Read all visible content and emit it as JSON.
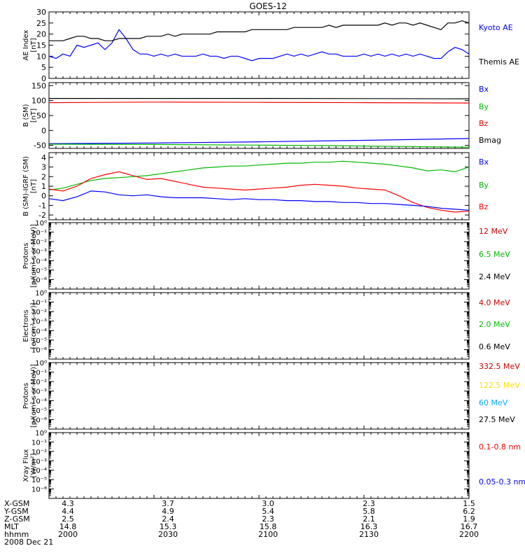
{
  "title": "GOES-12",
  "chart_data": [
    {
      "type": "line",
      "id": "ae",
      "ylabel": [
        "AE Index",
        "[nT]"
      ],
      "ylim": [
        0,
        30
      ],
      "yticks": [
        "0",
        "5",
        "10",
        "15",
        "20",
        "25",
        "30"
      ],
      "legend": [
        {
          "label": "Kyoto AE",
          "color": "#0000ff"
        },
        {
          "label": "Themis AE",
          "color": "#000000"
        }
      ],
      "series": [
        {
          "name": "Kyoto AE",
          "color": "#0000ff",
          "x": [
            0,
            1,
            2,
            3,
            4,
            5,
            6,
            7,
            8,
            9,
            10,
            11,
            12,
            13,
            14,
            15,
            16,
            17,
            18,
            19,
            20,
            21,
            22,
            23,
            24,
            25,
            26,
            27,
            28,
            29,
            30,
            31,
            32,
            33,
            34,
            35,
            36,
            37,
            38,
            39,
            40,
            41,
            42,
            43,
            44,
            45,
            46,
            47,
            48,
            49,
            50,
            51,
            52,
            53,
            54,
            55,
            56,
            57,
            58,
            59,
            60
          ],
          "y": [
            10,
            9,
            11,
            10,
            15,
            14,
            15,
            16,
            13,
            16,
            22,
            18,
            13,
            11,
            11,
            10,
            11,
            10,
            11,
            10,
            10,
            10,
            11,
            10,
            10,
            9,
            10,
            10,
            9,
            8,
            9,
            9,
            9,
            10,
            11,
            10,
            11,
            10,
            11,
            12,
            11,
            11,
            10,
            10,
            10,
            11,
            10,
            11,
            10,
            11,
            10,
            11,
            10,
            11,
            10,
            9,
            9,
            12,
            14,
            13,
            11
          ]
        },
        {
          "name": "Themis AE",
          "color": "#000000",
          "x": [
            0,
            1,
            2,
            3,
            4,
            5,
            6,
            7,
            8,
            9,
            10,
            11,
            12,
            13,
            14,
            15,
            16,
            17,
            18,
            19,
            20,
            21,
            22,
            23,
            24,
            25,
            26,
            27,
            28,
            29,
            30,
            31,
            32,
            33,
            34,
            35,
            36,
            37,
            38,
            39,
            40,
            41,
            42,
            43,
            44,
            45,
            46,
            47,
            48,
            49,
            50,
            51,
            52,
            53,
            54,
            55,
            56,
            57,
            58,
            59,
            60
          ],
          "y": [
            17,
            17,
            17,
            18,
            19,
            19,
            18,
            18,
            17,
            17,
            18,
            18,
            18,
            18,
            19,
            19,
            19,
            20,
            19,
            20,
            20,
            20,
            20,
            20,
            21,
            21,
            21,
            21,
            21,
            22,
            22,
            22,
            22,
            22,
            22,
            23,
            23,
            23,
            23,
            23,
            24,
            23,
            24,
            24,
            24,
            24,
            24,
            24,
            25,
            24,
            25,
            25,
            24,
            25,
            24,
            23,
            22,
            25,
            25,
            26,
            25
          ]
        }
      ]
    },
    {
      "type": "line",
      "id": "bsm",
      "ylabel": [
        "B (SM)",
        "[nT]"
      ],
      "ylim": [
        -60,
        160
      ],
      "yticks": [
        "-50",
        "0",
        "50",
        "100",
        "150"
      ],
      "legend": [
        {
          "label": "Bx",
          "color": "#0000ff"
        },
        {
          "label": "By",
          "color": "#00bb00"
        },
        {
          "label": "Bz",
          "color": "#ff0000"
        },
        {
          "label": "Bmag",
          "color": "#000000"
        }
      ],
      "series": [
        {
          "name": "Bmag",
          "color": "#000000",
          "x": [
            0,
            30,
            60
          ],
          "y": [
            107,
            107,
            106
          ]
        },
        {
          "name": "Bz",
          "color": "#ff0000",
          "x": [
            0,
            15,
            30,
            45,
            60
          ],
          "y": [
            93,
            95,
            94,
            93,
            92
          ]
        },
        {
          "name": "Bx",
          "color": "#0000ff",
          "x": [
            0,
            15,
            30,
            45,
            60
          ],
          "y": [
            -44,
            -42,
            -38,
            -33,
            -27
          ]
        },
        {
          "name": "By",
          "color": "#00bb00",
          "x": [
            0,
            15,
            30,
            45,
            60
          ],
          "y": [
            -46,
            -47,
            -49,
            -52,
            -56
          ]
        }
      ]
    },
    {
      "type": "line",
      "id": "bdiff",
      "ylabel": [
        "B (SM)-IGRF (SM)",
        "[nT]"
      ],
      "ylim": [
        -2.5,
        4.5
      ],
      "yticks": [
        "-2",
        "-1",
        "0",
        "1",
        "2",
        "3",
        "4"
      ],
      "legend": [
        {
          "label": "Bx",
          "color": "#0000ff"
        },
        {
          "label": "By",
          "color": "#00bb00"
        },
        {
          "label": "Bz",
          "color": "#ff0000"
        }
      ],
      "series": [
        {
          "name": "By",
          "color": "#00bb00",
          "x": [
            0,
            2,
            4,
            6,
            8,
            10,
            12,
            14,
            16,
            18,
            20,
            22,
            24,
            26,
            28,
            30,
            32,
            34,
            36,
            38,
            40,
            42,
            44,
            46,
            48,
            50,
            52,
            54,
            56,
            58,
            60
          ],
          "y": [
            0.6,
            0.8,
            1.2,
            1.6,
            1.8,
            1.9,
            2.0,
            2.1,
            2.3,
            2.5,
            2.7,
            2.9,
            3.0,
            3.1,
            3.1,
            3.2,
            3.3,
            3.4,
            3.4,
            3.5,
            3.5,
            3.6,
            3.5,
            3.4,
            3.3,
            3.1,
            2.9,
            2.6,
            2.7,
            2.5,
            3.0
          ]
        },
        {
          "name": "Bz",
          "color": "#ff0000",
          "x": [
            0,
            2,
            4,
            6,
            8,
            10,
            12,
            14,
            16,
            18,
            20,
            22,
            24,
            26,
            28,
            30,
            32,
            34,
            36,
            38,
            40,
            42,
            44,
            46,
            48,
            50,
            52,
            54,
            56,
            58,
            60
          ],
          "y": [
            0.7,
            0.5,
            1.0,
            1.8,
            2.2,
            2.5,
            2.1,
            1.7,
            1.8,
            1.5,
            1.2,
            0.9,
            0.8,
            0.7,
            0.6,
            0.7,
            0.8,
            0.9,
            1.1,
            1.2,
            1.1,
            1.0,
            0.8,
            0.7,
            0.6,
            0.0,
            -0.7,
            -1.2,
            -1.5,
            -1.7,
            -1.6
          ]
        },
        {
          "name": "Bx",
          "color": "#0000ff",
          "x": [
            0,
            2,
            4,
            6,
            8,
            10,
            12,
            14,
            16,
            18,
            20,
            22,
            24,
            26,
            28,
            30,
            32,
            34,
            36,
            38,
            40,
            42,
            44,
            46,
            48,
            50,
            52,
            54,
            56,
            58,
            60
          ],
          "y": [
            -0.3,
            -0.5,
            -0.1,
            0.5,
            0.4,
            0.1,
            0.0,
            0.1,
            -0.1,
            -0.2,
            -0.2,
            -0.2,
            -0.3,
            -0.4,
            -0.3,
            -0.4,
            -0.4,
            -0.5,
            -0.5,
            -0.6,
            -0.6,
            -0.7,
            -0.7,
            -0.8,
            -0.8,
            -0.9,
            -1.0,
            -1.1,
            -1.3,
            -1.4,
            -1.5
          ]
        }
      ]
    },
    {
      "type": "line",
      "id": "protons1",
      "ylabel": [
        "Protons",
        "[p/(cm²-s-sr-MeV)]"
      ],
      "log": true,
      "ylim": [
        1e-07,
        1
      ],
      "yticks": [
        "10⁰",
        "10⁻¹",
        "10⁻²",
        "10⁻³",
        "10⁻⁴",
        "10⁻⁵",
        "10⁻⁶"
      ],
      "legend": [
        {
          "label": "12 MeV",
          "color": "#cc0000"
        },
        {
          "label": "6.5 MeV",
          "color": "#00bb00"
        },
        {
          "label": "2.4 MeV",
          "color": "#000000"
        }
      ],
      "series": []
    },
    {
      "type": "line",
      "id": "electrons",
      "ylabel": [
        "Electrons",
        "[e/(cm²-s-sr)]"
      ],
      "log": true,
      "ylim": [
        1e-07,
        1
      ],
      "yticks": [
        "10⁰",
        "10⁻¹",
        "10⁻²",
        "10⁻³",
        "10⁻⁴",
        "10⁻⁵",
        "10⁻⁶"
      ],
      "legend": [
        {
          "label": "4.0 MeV",
          "color": "#cc0000"
        },
        {
          "label": "2.0 MeV",
          "color": "#00bb00"
        },
        {
          "label": "0.6 MeV",
          "color": "#000000"
        }
      ],
      "series": []
    },
    {
      "type": "line",
      "id": "protons2",
      "ylabel": [
        "Protons",
        "[p/(cm²-s-sr-MeV)]"
      ],
      "log": true,
      "ylim": [
        1e-07,
        1
      ],
      "yticks": [
        "10⁰",
        "10⁻¹",
        "10⁻²",
        "10⁻³",
        "10⁻⁴",
        "10⁻⁵",
        "10⁻⁶"
      ],
      "legend": [
        {
          "label": "332.5 MeV",
          "color": "#cc0000"
        },
        {
          "label": "122.5 MeV",
          "color": "#ffdd00"
        },
        {
          "label": "60 MeV",
          "color": "#00aaff"
        },
        {
          "label": "27.5 MeV",
          "color": "#000000"
        }
      ],
      "series": []
    },
    {
      "type": "line",
      "id": "xray",
      "ylabel": [
        "Xray Flux",
        "[W/m²]"
      ],
      "log": true,
      "ylim": [
        1e-07,
        1
      ],
      "yticks": [
        "10⁰",
        "10⁻¹",
        "10⁻²",
        "10⁻³",
        "10⁻⁴",
        "10⁻⁵",
        "10⁻⁶"
      ],
      "legend": [
        {
          "label": "0.1-0.8 nm",
          "color": "#ff0000"
        },
        {
          "label": "0.05-0.3 nm",
          "color": "#0000ff"
        }
      ],
      "series": []
    }
  ],
  "xaxis": {
    "rows": [
      {
        "label": "X-GSM",
        "values": [
          "4.3",
          "3.7",
          "3.0",
          "2.3",
          "1.5"
        ]
      },
      {
        "label": "Y-GSM",
        "values": [
          "4.4",
          "4.9",
          "5.4",
          "5.8",
          "6.2"
        ]
      },
      {
        "label": "Z-GSM",
        "values": [
          "2.5",
          "2.4",
          "2.3",
          "2.1",
          "1.9"
        ]
      },
      {
        "label": "MLT",
        "values": [
          "14.8",
          "15.3",
          "15.8",
          "16.3",
          "16.7"
        ]
      },
      {
        "label": "hhmm",
        "values": [
          "2000",
          "2030",
          "2100",
          "2130",
          "2200"
        ]
      }
    ],
    "date": "2008 Dec 21"
  }
}
